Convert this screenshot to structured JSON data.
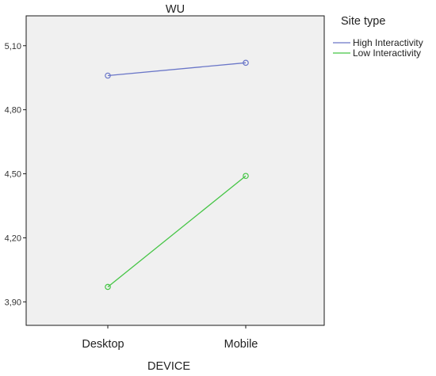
{
  "chart_data": {
    "type": "line",
    "title": "WU",
    "xlabel": "DEVICE",
    "ylabel": "",
    "categories": [
      "Desktop",
      "Mobile"
    ],
    "ylim": [
      3.79,
      5.24
    ],
    "yticks": [
      "3,90",
      "4,20",
      "4,50",
      "4,80",
      "5,10"
    ],
    "ytick_values": [
      3.9,
      4.2,
      4.5,
      4.8,
      5.1
    ],
    "grid": false,
    "legend": {
      "title": "Site type",
      "placement": "right"
    },
    "series": [
      {
        "name": "High Interactivity",
        "color": "#6a76c8",
        "values": [
          4.96,
          5.02
        ]
      },
      {
        "name": "Low Interactivity",
        "color": "#45c545",
        "values": [
          3.97,
          4.49
        ]
      }
    ],
    "plot_background": "#f0f0f0",
    "marker": "open-circle"
  }
}
